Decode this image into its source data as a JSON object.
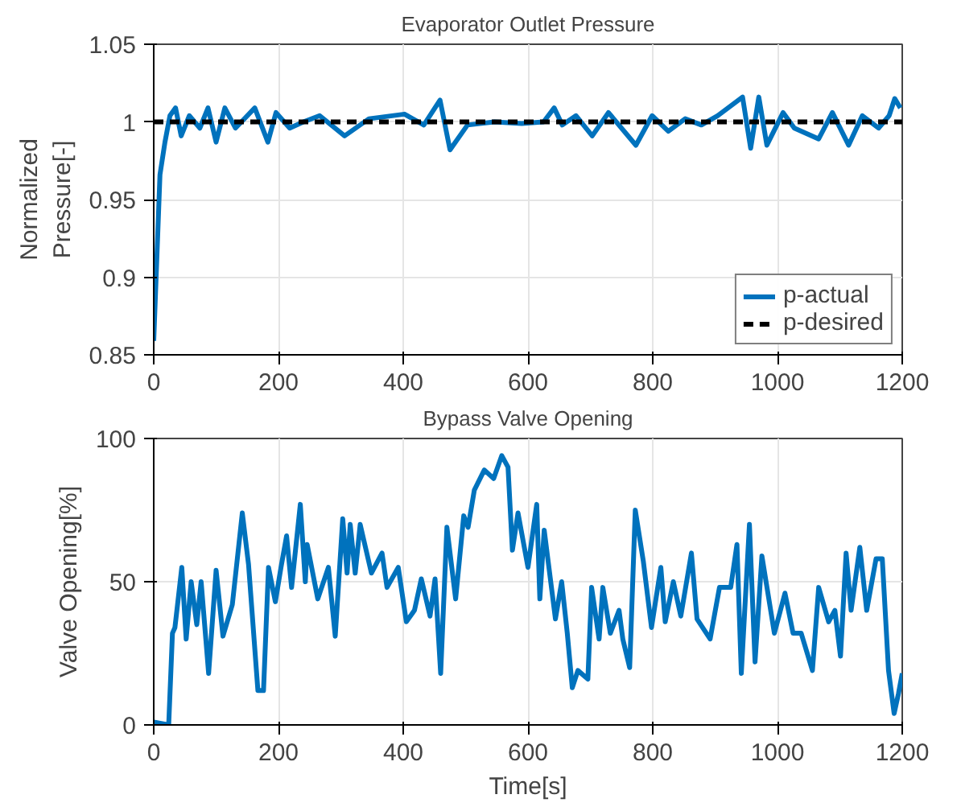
{
  "chart_data": [
    {
      "type": "line",
      "title": "Evaporator Outlet Pressure",
      "ylabel": "Normalized Pressure[-]",
      "xlim": [
        0,
        1200
      ],
      "xticks": [
        0,
        200,
        400,
        600,
        800,
        1000,
        1200
      ],
      "ylim": [
        0.85,
        1.05
      ],
      "yticks": [
        {
          "value": 0.85,
          "label": "0.85"
        },
        {
          "value": 0.9,
          "label": "0.9"
        },
        {
          "value": 0.95,
          "label": "0.95"
        },
        {
          "value": 1,
          "label": "1"
        },
        {
          "value": 1.05,
          "label": "1.05"
        }
      ],
      "grid": true,
      "legend": "bottom right",
      "series": [
        {
          "name": "p-actual",
          "color": "#0072bd",
          "line_style": "solid",
          "x": [
            0,
            10,
            18,
            26,
            35,
            44,
            57,
            74,
            87,
            100,
            114,
            131,
            162,
            183,
            196,
            218,
            240,
            266,
            306,
            345,
            402,
            433,
            459,
            475,
            503,
            546,
            590,
            625,
            642,
            655,
            677,
            703,
            729,
            773,
            799,
            825,
            852,
            878,
            904,
            944,
            957,
            970,
            983,
            1009,
            1027,
            1066,
            1088,
            1114,
            1136,
            1162,
            1179,
            1188,
            1197
          ],
          "values": [
            0.859,
            0.966,
            0.987,
            1.004,
            1.009,
            0.991,
            1.004,
            0.996,
            1.009,
            0.987,
            1.009,
            0.996,
            1.009,
            0.987,
            1.006,
            0.996,
            1.0,
            1.004,
            0.991,
            1.002,
            1.005,
            0.998,
            1.014,
            0.982,
            0.998,
            1.0,
            0.999,
            1.0,
            1.009,
            0.998,
            1.004,
            0.991,
            1.006,
            0.985,
            1.004,
            0.994,
            1.002,
            0.998,
            1.004,
            1.016,
            0.983,
            1.016,
            0.985,
            1.006,
            0.996,
            0.989,
            1.006,
            0.985,
            1.004,
            0.996,
            1.004,
            1.015,
            1.009
          ]
        },
        {
          "name": "p-desired",
          "color": "#000000",
          "line_style": "dashed",
          "x": [
            0,
            1200
          ],
          "values": [
            1,
            1
          ]
        }
      ]
    },
    {
      "type": "line",
      "title": "Bypass Valve Opening",
      "xlabel": "Time[s]",
      "ylabel": "Valve Opening[%]",
      "xlim": [
        0,
        1200
      ],
      "xticks": [
        0,
        200,
        400,
        600,
        800,
        1000,
        1200
      ],
      "ylim": [
        0,
        100
      ],
      "yticks": [
        0,
        50,
        100
      ],
      "grid": true,
      "series": [
        {
          "color": "#0072bd",
          "line_style": "solid",
          "x": [
            0,
            24,
            30,
            34,
            45,
            52,
            60,
            69,
            76,
            88,
            100,
            111,
            126,
            142,
            152,
            167,
            176,
            184,
            195,
            204,
            213,
            221,
            235,
            243,
            246,
            263,
            280,
            291,
            303,
            310,
            315,
            323,
            331,
            349,
            366,
            374,
            392,
            405,
            418,
            429,
            443,
            451,
            460,
            470,
            484,
            497,
            504,
            514,
            530,
            545,
            558,
            568,
            575,
            584,
            600,
            614,
            619,
            626,
            644,
            654,
            663,
            671,
            680,
            696,
            702,
            714,
            720,
            732,
            746,
            752,
            763,
            772,
            785,
            798,
            813,
            820,
            833,
            845,
            862,
            871,
            892,
            907,
            925,
            935,
            942,
            955,
            964,
            975,
            995,
            1012,
            1025,
            1038,
            1056,
            1066,
            1082,
            1092,
            1101,
            1110,
            1118,
            1132,
            1143,
            1158,
            1168,
            1178,
            1187,
            1194,
            1200
          ],
          "values": [
            1,
            0,
            32,
            34,
            55,
            30,
            50,
            35,
            50,
            18,
            54,
            31,
            42,
            74,
            56,
            12,
            12,
            55,
            43,
            55,
            66,
            48,
            77,
            50,
            63,
            44,
            55,
            31,
            72,
            53,
            70,
            53,
            70,
            53,
            60,
            48,
            55,
            36,
            40,
            51,
            38,
            51,
            18,
            69,
            44,
            73,
            69,
            82,
            89,
            86,
            94,
            90,
            61,
            74,
            55,
            77,
            44,
            68,
            37,
            50,
            32,
            13,
            19,
            16,
            48,
            30,
            48,
            32,
            40,
            30,
            20,
            75,
            57,
            34,
            55,
            36,
            50,
            38,
            60,
            37,
            30,
            48,
            48,
            63,
            18,
            70,
            22,
            59,
            32,
            46,
            32,
            32,
            19,
            48,
            36,
            40,
            24,
            60,
            40,
            62,
            40,
            58,
            58,
            19,
            4,
            11,
            18
          ]
        }
      ]
    }
  ]
}
